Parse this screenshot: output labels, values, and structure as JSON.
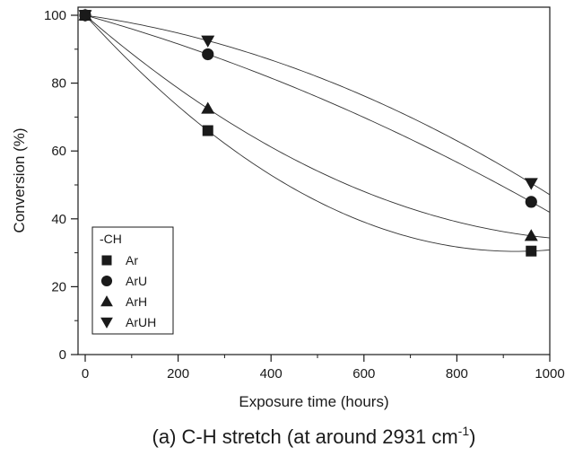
{
  "chart_data": {
    "type": "scatter",
    "title": "",
    "caption": {
      "main": "(a) C-H stretch (at around 2931 cm",
      "superscript": "-1",
      "closing": ")"
    },
    "xlabel": "Exposure time (hours)",
    "ylabel": "Conversion (%)",
    "xlim": [
      0,
      1000
    ],
    "ylim": [
      0,
      100
    ],
    "xticks": [
      0,
      200,
      400,
      600,
      800,
      1000
    ],
    "yticks": [
      0,
      20,
      40,
      60,
      80,
      100
    ],
    "xtick_labels": [
      "0",
      "200",
      "400",
      "600",
      "800",
      "1000"
    ],
    "ytick_labels": [
      "0",
      "20",
      "40",
      "60",
      "80",
      "100"
    ],
    "grid": false,
    "legend": {
      "title": "-CH",
      "placement": "bottom-left"
    },
    "series": [
      {
        "name": "Ar",
        "marker": "square",
        "x": [
          0,
          264,
          960
        ],
        "y": [
          100,
          66,
          30.5
        ]
      },
      {
        "name": "ArU",
        "marker": "circle",
        "x": [
          0,
          264,
          960
        ],
        "y": [
          100,
          88.5,
          45
        ]
      },
      {
        "name": "ArH",
        "marker": "triangle-up",
        "x": [
          0,
          264,
          960
        ],
        "y": [
          100,
          72.5,
          35
        ]
      },
      {
        "name": "ArUH",
        "marker": "triangle-down",
        "x": [
          0,
          264,
          960
        ],
        "y": [
          100,
          92.5,
          50.5
        ]
      }
    ]
  }
}
